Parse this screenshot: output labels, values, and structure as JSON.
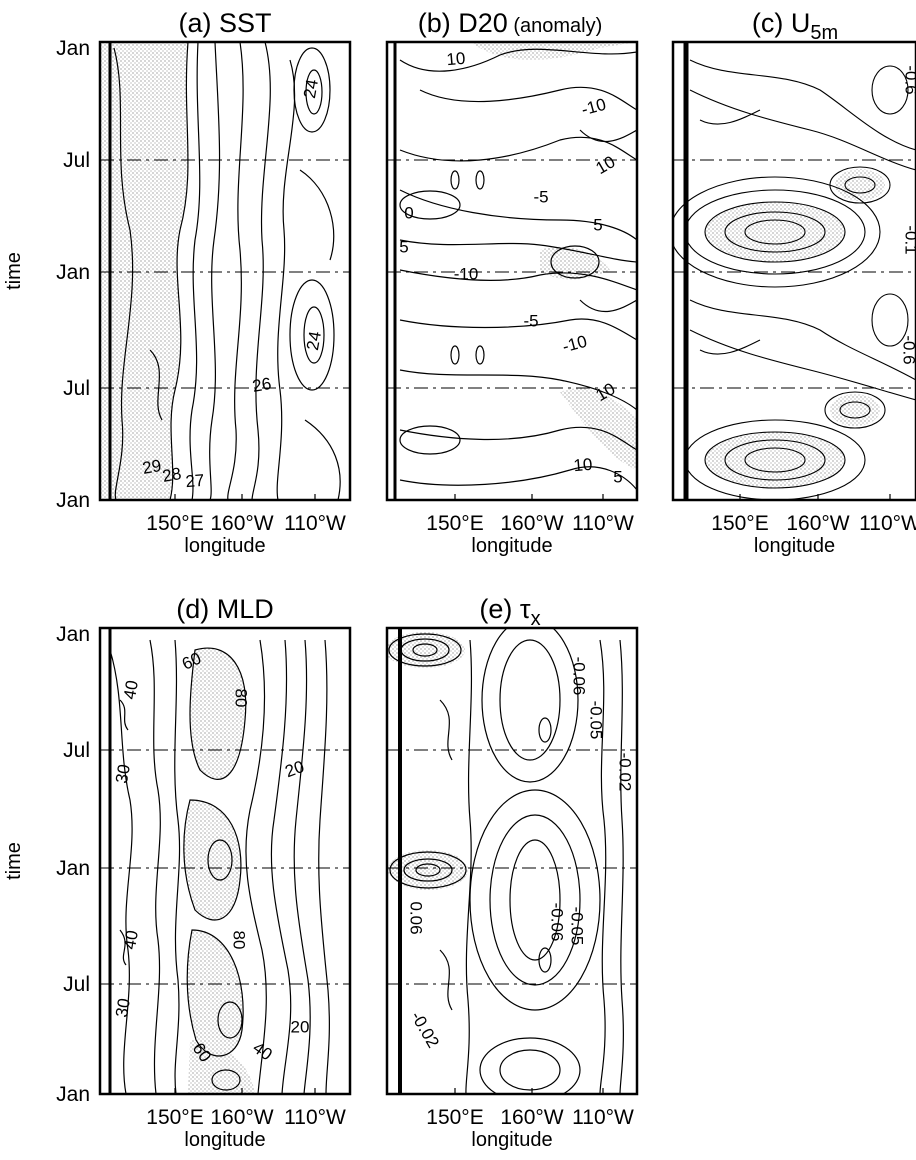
{
  "chart_data": [
    {
      "type": "heatmap",
      "panel": "(a)",
      "title": "SST",
      "xlabel": "longitude",
      "ylabel": "time",
      "x_ticks": [
        "150°E",
        "160°W",
        "110°W"
      ],
      "y_ticks": [
        "Jan",
        "Jul",
        "Jan",
        "Jul",
        "Jan"
      ],
      "contour_labels": [
        "29",
        "28",
        "27",
        "26",
        "24",
        "24"
      ],
      "grid": "dashed horizontal lines at Jul, Jan, Jul",
      "shading": "warm pool west of ~170°E (SST > 28)"
    },
    {
      "type": "heatmap",
      "panel": "(b)",
      "title": "D20",
      "title_suffix": "(anomaly)",
      "xlabel": "longitude",
      "ylabel": "",
      "x_ticks": [
        "150°E",
        "160°W",
        "110°W"
      ],
      "y_ticks": [],
      "contour_labels": [
        "10",
        "-10",
        "10",
        "-5",
        "0",
        "5",
        "5",
        "-10",
        "-10",
        "10",
        "-5",
        "10",
        "5"
      ],
      "grid": "dashed horizontal lines at Jul, Jan, Jul"
    },
    {
      "type": "heatmap",
      "panel": "(c)",
      "title": "U",
      "title_subscript": "5m",
      "xlabel": "longitude",
      "ylabel": "",
      "x_ticks": [
        "150°E",
        "160°W",
        "110°W"
      ],
      "y_ticks": [],
      "contour_labels": [
        "-0.6",
        "-0.1",
        "-0.6"
      ],
      "grid": "dashed horizontal lines at Jul, Jan, Jul"
    },
    {
      "type": "heatmap",
      "panel": "(d)",
      "title": "MLD",
      "xlabel": "longitude",
      "ylabel": "time",
      "x_ticks": [
        "150°E",
        "160°W",
        "110°W"
      ],
      "y_ticks": [
        "Jan",
        "Jul",
        "Jan",
        "Jul",
        "Jan"
      ],
      "contour_labels": [
        "40",
        "60",
        "80",
        "30",
        "20",
        "40",
        "80",
        "30",
        "60",
        "40",
        "20"
      ],
      "grid": "dashed horizontal lines at Jul, Jan, Jul"
    },
    {
      "type": "heatmap",
      "panel": "(e)",
      "title": "τ",
      "title_subscript": "x",
      "xlabel": "longitude",
      "ylabel": "",
      "x_ticks": [
        "150°E",
        "160°W",
        "110°W"
      ],
      "y_ticks": [],
      "contour_labels": [
        "-0.06",
        "-0.05",
        "-0.02",
        "-0.06",
        "-0.05",
        "0.06",
        "-0.02"
      ],
      "grid": "dashed horizontal lines at Jul, Jan, Jul"
    }
  ]
}
